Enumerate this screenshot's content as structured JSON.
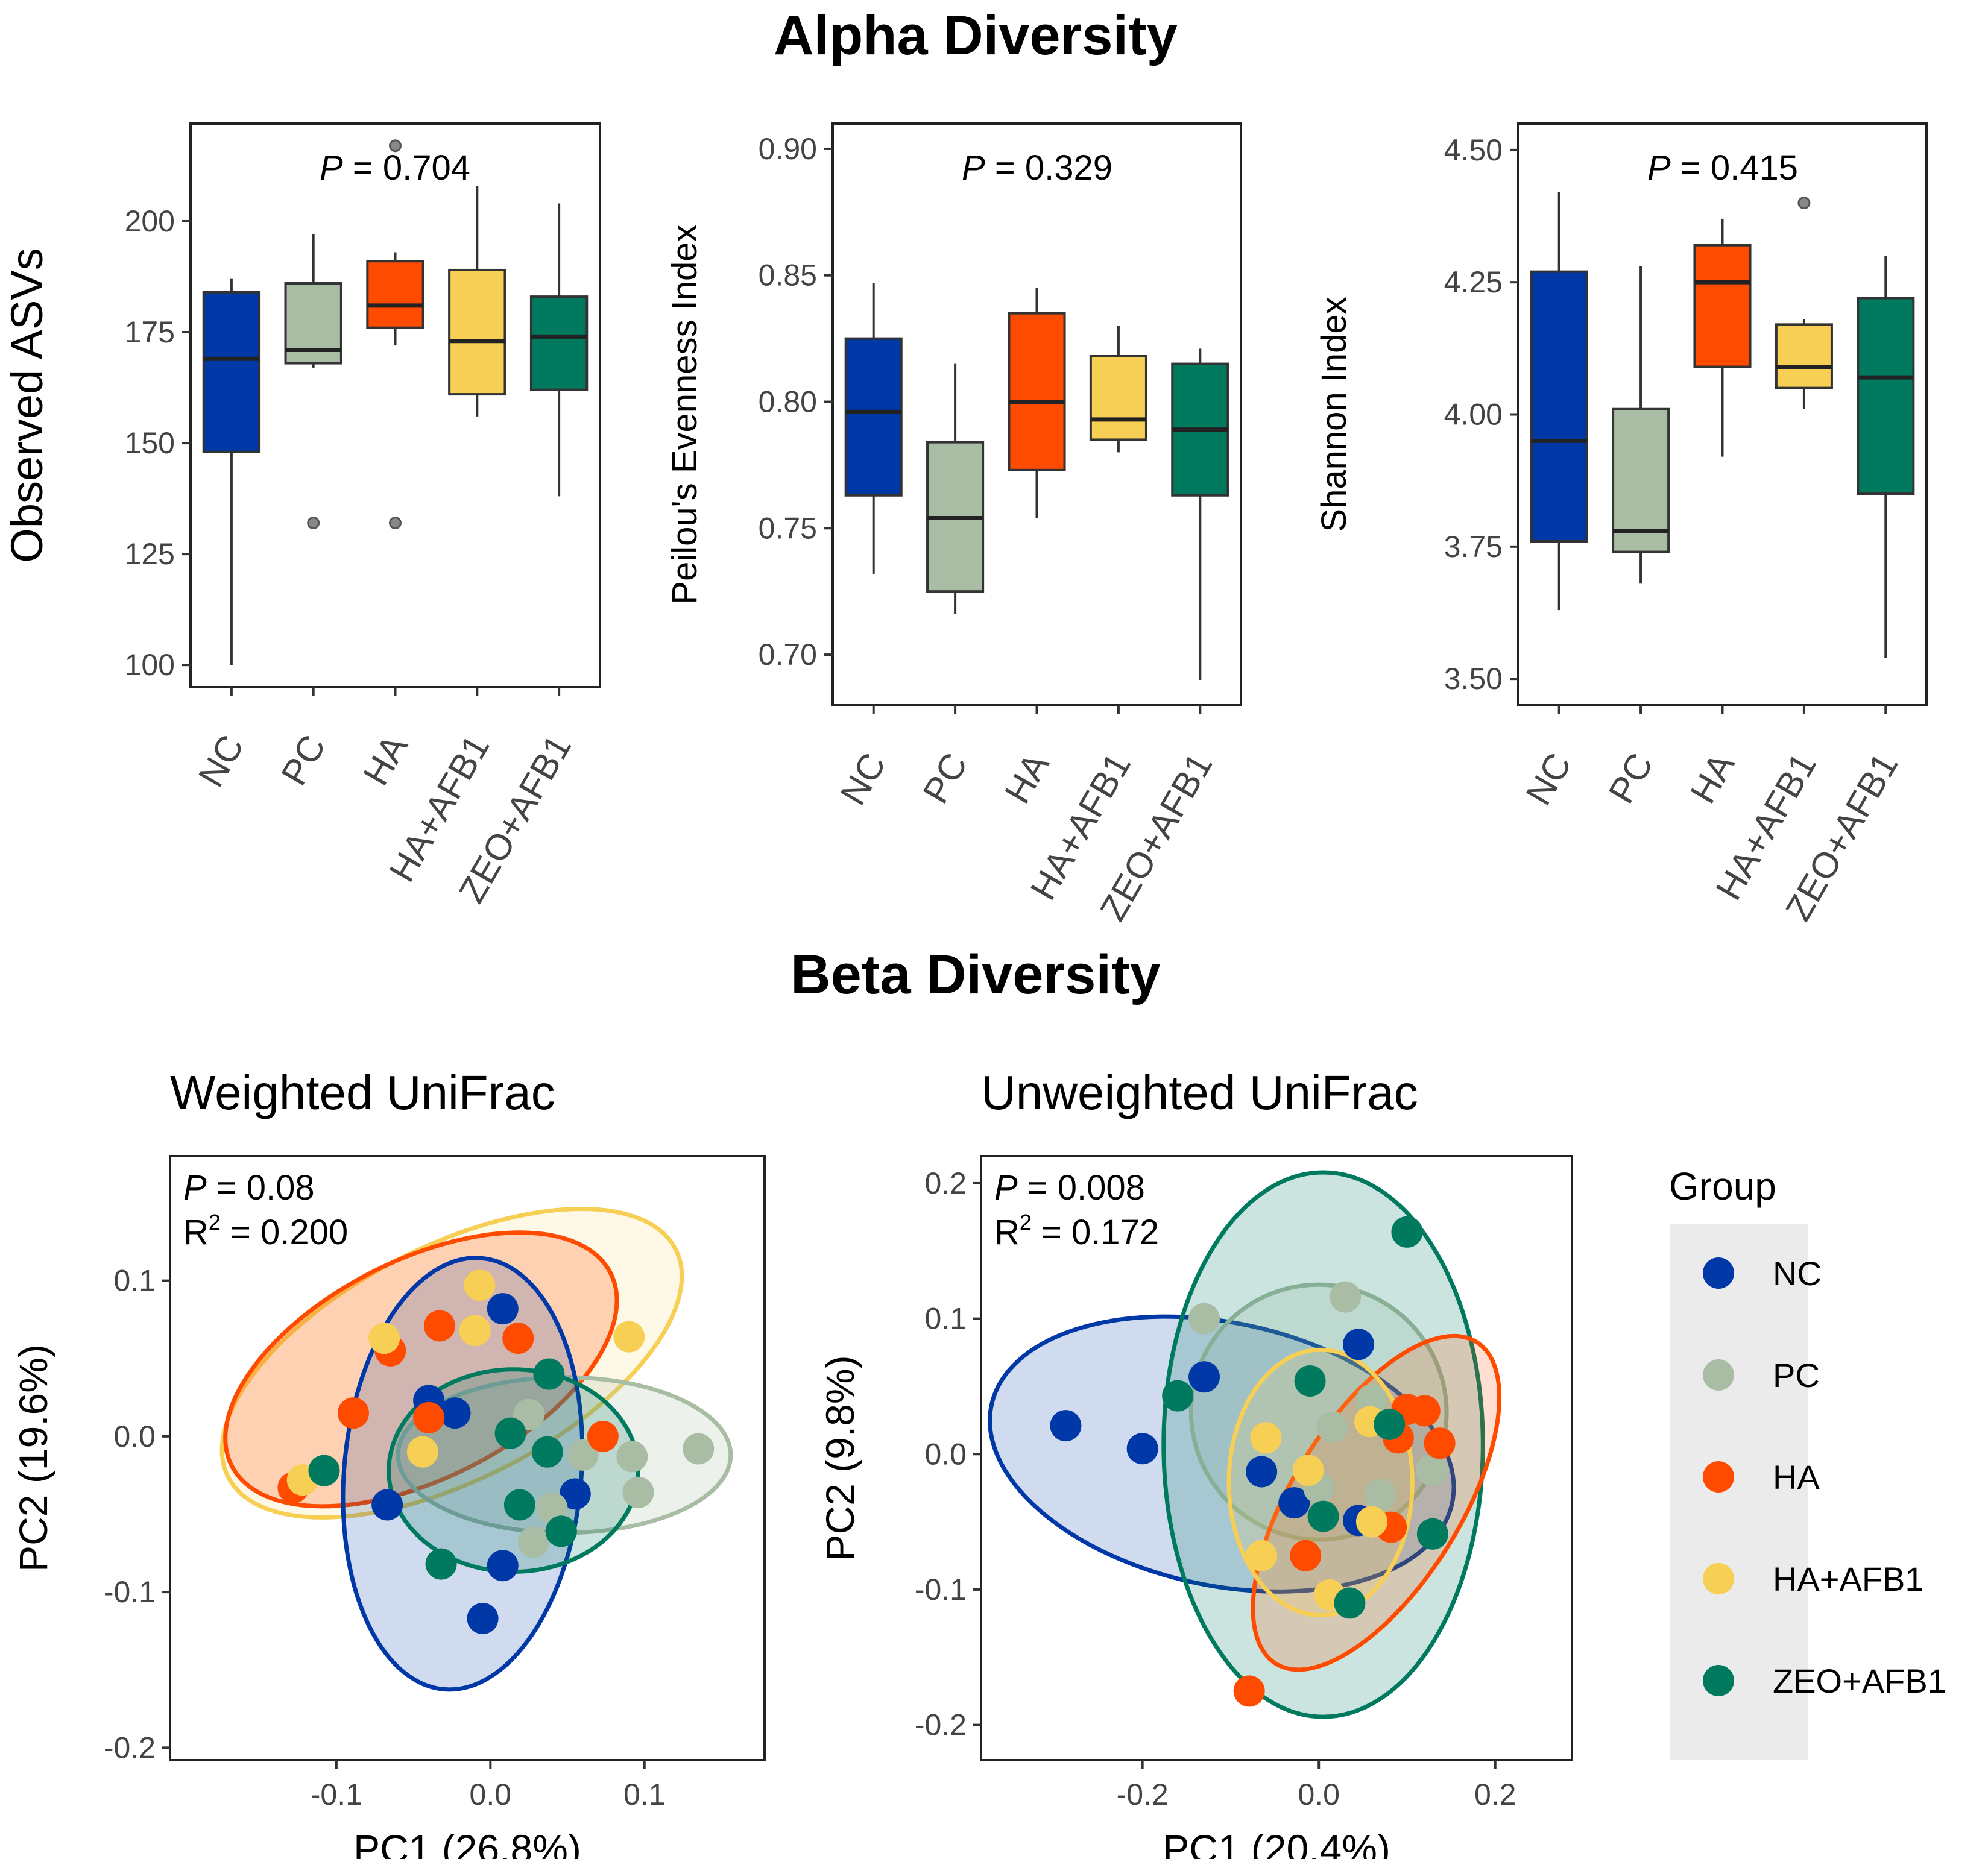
{
  "alpha_title": "Alpha Diversity",
  "beta_title": "Beta Diversity",
  "colors": {
    "NC": "#0038a8",
    "PC": "#a8bda4",
    "HA": "#ff4b00",
    "HA+AFB1": "#f7cf55",
    "ZEO+AFB1": "#007a5e"
  },
  "legend": {
    "title": "Group",
    "items": [
      "NC",
      "PC",
      "HA",
      "HA+AFB1",
      "ZEO+AFB1"
    ]
  },
  "chart_data": [
    {
      "type": "box",
      "title": "",
      "ylabel": "Observed ASVs",
      "annotation": {
        "p_label": "P",
        "p_value": "= 0.704"
      },
      "ylim": [
        95,
        222
      ],
      "yticks": [
        100,
        125,
        150,
        175,
        200
      ],
      "categories": [
        "NC",
        "PC",
        "HA",
        "HA+AFB1",
        "ZEO+AFB1"
      ],
      "boxes": [
        {
          "group": "NC",
          "whisker_low": 100,
          "q1": 148,
          "median": 169,
          "q3": 184,
          "whisker_high": 187,
          "outliers": []
        },
        {
          "group": "PC",
          "whisker_low": 167,
          "q1": 168,
          "median": 171,
          "q3": 186,
          "whisker_high": 197,
          "outliers": [
            132
          ]
        },
        {
          "group": "HA",
          "whisker_low": 172,
          "q1": 176,
          "median": 181,
          "q3": 191,
          "whisker_high": 193,
          "outliers": [
            217,
            132
          ]
        },
        {
          "group": "HA+AFB1",
          "whisker_low": 156,
          "q1": 161,
          "median": 173,
          "q3": 189,
          "whisker_high": 208,
          "outliers": []
        },
        {
          "group": "ZEO+AFB1",
          "whisker_low": 138,
          "q1": 162,
          "median": 174,
          "q3": 183,
          "whisker_high": 204,
          "outliers": []
        }
      ]
    },
    {
      "type": "box",
      "title": "",
      "ylabel": "Peilou's Evenness Index",
      "annotation": {
        "p_label": "P",
        "p_value": "= 0.329"
      },
      "ylim": [
        0.68,
        0.91
      ],
      "yticks": [
        0.7,
        0.75,
        0.8,
        0.85,
        0.9
      ],
      "ytick_labels": [
        "0.70",
        "0.75",
        "0.80",
        "0.85",
        "0.90"
      ],
      "categories": [
        "NC",
        "PC",
        "HA",
        "HA+AFB1",
        "ZEO+AFB1"
      ],
      "boxes": [
        {
          "group": "NC",
          "whisker_low": 0.732,
          "q1": 0.763,
          "median": 0.796,
          "q3": 0.825,
          "whisker_high": 0.847,
          "outliers": []
        },
        {
          "group": "PC",
          "whisker_low": 0.716,
          "q1": 0.725,
          "median": 0.754,
          "q3": 0.784,
          "whisker_high": 0.815,
          "outliers": []
        },
        {
          "group": "HA",
          "whisker_low": 0.754,
          "q1": 0.773,
          "median": 0.8,
          "q3": 0.835,
          "whisker_high": 0.845,
          "outliers": []
        },
        {
          "group": "HA+AFB1",
          "whisker_low": 0.78,
          "q1": 0.785,
          "median": 0.793,
          "q3": 0.818,
          "whisker_high": 0.83,
          "outliers": []
        },
        {
          "group": "ZEO+AFB1",
          "whisker_low": 0.69,
          "q1": 0.763,
          "median": 0.789,
          "q3": 0.815,
          "whisker_high": 0.821,
          "outliers": []
        }
      ]
    },
    {
      "type": "box",
      "title": "",
      "ylabel": "Shannon Index",
      "annotation": {
        "p_label": "P",
        "p_value": "= 0.415"
      },
      "ylim": [
        3.45,
        4.55
      ],
      "yticks": [
        3.5,
        3.75,
        4.0,
        4.25,
        4.5
      ],
      "ytick_labels": [
        "3.50",
        "3.75",
        "4.00",
        "4.25",
        "4.50"
      ],
      "categories": [
        "NC",
        "PC",
        "HA",
        "HA+AFB1",
        "ZEO+AFB1"
      ],
      "boxes": [
        {
          "group": "NC",
          "whisker_low": 3.63,
          "q1": 3.76,
          "median": 3.95,
          "q3": 4.27,
          "whisker_high": 4.42,
          "outliers": []
        },
        {
          "group": "PC",
          "whisker_low": 3.68,
          "q1": 3.74,
          "median": 3.78,
          "q3": 4.01,
          "whisker_high": 4.28,
          "outliers": []
        },
        {
          "group": "HA",
          "whisker_low": 3.92,
          "q1": 4.09,
          "median": 4.25,
          "q3": 4.32,
          "whisker_high": 4.37,
          "outliers": []
        },
        {
          "group": "HA+AFB1",
          "whisker_low": 4.01,
          "q1": 4.05,
          "median": 4.09,
          "q3": 4.17,
          "whisker_high": 4.18,
          "outliers": [
            4.4
          ]
        },
        {
          "group": "ZEO+AFB1",
          "whisker_low": 3.54,
          "q1": 3.85,
          "median": 4.07,
          "q3": 4.22,
          "whisker_high": 4.3,
          "outliers": []
        }
      ]
    },
    {
      "type": "scatter",
      "title": "Weighted UniFrac",
      "xlabel": "PC1 (26.8%)",
      "ylabel": "PC2 (19.6%)",
      "annotation": {
        "p_label": "P",
        "p_value": "= 0.08",
        "r2_label": "R",
        "r2_sup": "2",
        "r2_value": "= 0.200"
      },
      "xlim": [
        -0.208,
        0.178
      ],
      "ylim": [
        -0.208,
        0.18
      ],
      "xticks": [
        -0.1,
        0.0,
        0.1
      ],
      "xtick_labels": [
        "-0.1",
        "0.0",
        "0.1"
      ],
      "yticks": [
        -0.2,
        -0.1,
        0.0,
        0.1
      ],
      "ytick_labels": [
        "-0.2",
        "-0.1",
        "0.0",
        "0.1"
      ],
      "ellipses": [
        {
          "group": "HA+AFB1",
          "cx": -0.025,
          "cy": 0.047,
          "rx": 0.163,
          "ry": 0.075,
          "angle": -27,
          "opacity": 0.15
        },
        {
          "group": "HA",
          "cx": -0.045,
          "cy": 0.043,
          "rx": 0.138,
          "ry": 0.07,
          "angle": -27,
          "opacity": 0.22
        },
        {
          "group": "PC",
          "cx": 0.048,
          "cy": -0.012,
          "rx": 0.108,
          "ry": 0.05,
          "angle": 0,
          "opacity": 0.22
        },
        {
          "group": "NC",
          "cx": -0.018,
          "cy": -0.024,
          "rx": 0.077,
          "ry": 0.139,
          "angle": 5,
          "opacity": 0.18
        },
        {
          "group": "ZEO+AFB1",
          "cx": 0.015,
          "cy": -0.022,
          "rx": 0.081,
          "ry": 0.065,
          "angle": 0,
          "opacity": 0.2
        }
      ],
      "series": [
        {
          "name": "NC",
          "points": [
            [
              0.008,
              0.082
            ],
            [
              -0.04,
              0.023
            ],
            [
              -0.023,
              0.015
            ],
            [
              -0.067,
              -0.044
            ],
            [
              0.055,
              -0.037
            ],
            [
              0.008,
              -0.083
            ],
            [
              -0.005,
              -0.117
            ]
          ]
        },
        {
          "name": "PC",
          "points": [
            [
              0.06,
              -0.012
            ],
            [
              0.092,
              -0.013
            ],
            [
              0.135,
              -0.008
            ],
            [
              0.096,
              -0.036
            ],
            [
              0.025,
              0.014
            ],
            [
              0.028,
              -0.068
            ],
            [
              0.04,
              -0.046
            ]
          ]
        },
        {
          "name": "HA",
          "points": [
            [
              -0.065,
              0.055
            ],
            [
              -0.033,
              0.071
            ],
            [
              -0.089,
              0.015
            ],
            [
              0.018,
              0.063
            ],
            [
              0.073,
              0.0
            ],
            [
              -0.04,
              0.012
            ],
            [
              -0.128,
              -0.033
            ]
          ]
        },
        {
          "name": "HA+AFB1",
          "points": [
            [
              -0.007,
              0.097
            ],
            [
              -0.069,
              0.063
            ],
            [
              -0.01,
              0.068
            ],
            [
              0.09,
              0.064
            ],
            [
              -0.044,
              -0.01
            ],
            [
              -0.122,
              -0.028
            ]
          ]
        },
        {
          "name": "ZEO+AFB1",
          "points": [
            [
              0.038,
              0.04
            ],
            [
              0.013,
              0.002
            ],
            [
              0.037,
              -0.01
            ],
            [
              0.019,
              -0.044
            ],
            [
              0.046,
              -0.061
            ],
            [
              -0.032,
              -0.082
            ],
            [
              -0.108,
              -0.022
            ]
          ]
        }
      ]
    },
    {
      "type": "scatter",
      "title": "Unweighted UniFrac",
      "xlabel": "PC1 (20.4%)",
      "ylabel": "PC2 (9.8%)",
      "annotation": {
        "p_label": "P",
        "p_value": "= 0.008",
        "r2_label": "R",
        "r2_sup": "2",
        "r2_value": "= 0.172"
      },
      "xlim": [
        -0.383,
        0.287
      ],
      "ylim": [
        -0.226,
        0.22
      ],
      "xticks": [
        -0.2,
        0.0,
        0.2
      ],
      "xtick_labels": [
        "-0.2",
        "0.0",
        "0.2"
      ],
      "yticks": [
        -0.2,
        -0.1,
        0.0,
        0.1,
        0.2
      ],
      "ytick_labels": [
        "-0.2",
        "-0.1",
        "0.0",
        "0.1",
        "0.2"
      ],
      "ellipses": [
        {
          "group": "NC",
          "cx": -0.11,
          "cy": 0.0,
          "rx": 0.267,
          "ry": 0.097,
          "angle": 12,
          "opacity": 0.18
        },
        {
          "group": "PC",
          "cx": 0.0,
          "cy": 0.031,
          "rx": 0.145,
          "ry": 0.094,
          "angle": 32,
          "opacity": 0.2
        },
        {
          "group": "ZEO+AFB1",
          "cx": 0.005,
          "cy": 0.007,
          "rx": 0.181,
          "ry": 0.201,
          "angle": 0,
          "opacity": 0.2
        },
        {
          "group": "HA",
          "cx": 0.065,
          "cy": -0.036,
          "rx": 0.215,
          "ry": 0.062,
          "angle": -58,
          "opacity": 0.18
        },
        {
          "group": "HA+AFB1",
          "cx": 0.002,
          "cy": -0.021,
          "rx": 0.104,
          "ry": 0.098,
          "angle": 0,
          "opacity": 0.18
        }
      ],
      "series": [
        {
          "name": "NC",
          "points": [
            [
              -0.287,
              0.021
            ],
            [
              -0.2,
              0.004
            ],
            [
              -0.13,
              0.057
            ],
            [
              -0.065,
              -0.013
            ],
            [
              -0.028,
              -0.036
            ],
            [
              0.045,
              0.081
            ],
            [
              0.045,
              -0.049
            ]
          ]
        },
        {
          "name": "PC",
          "points": [
            [
              -0.13,
              0.1
            ],
            [
              0.03,
              0.116
            ],
            [
              0.06,
              0.04
            ],
            [
              0.128,
              -0.012
            ],
            [
              0.015,
              0.02
            ],
            [
              0.07,
              -0.03
            ],
            [
              0.0,
              -0.025
            ]
          ]
        },
        {
          "name": "HA",
          "points": [
            [
              0.12,
              0.032
            ],
            [
              0.137,
              0.008
            ],
            [
              0.09,
              0.012
            ],
            [
              0.082,
              -0.054
            ],
            [
              0.1,
              0.033
            ],
            [
              -0.015,
              -0.075
            ],
            [
              -0.079,
              -0.175
            ]
          ]
        },
        {
          "name": "HA+AFB1",
          "points": [
            [
              0.058,
              0.024
            ],
            [
              -0.06,
              0.012
            ],
            [
              -0.012,
              -0.012
            ],
            [
              0.06,
              -0.05
            ],
            [
              -0.065,
              -0.075
            ],
            [
              0.012,
              -0.104
            ]
          ]
        },
        {
          "name": "ZEO+AFB1",
          "points": [
            [
              0.1,
              0.164
            ],
            [
              -0.16,
              0.043
            ],
            [
              -0.01,
              0.054
            ],
            [
              0.08,
              0.022
            ],
            [
              0.005,
              -0.046
            ],
            [
              0.129,
              -0.059
            ],
            [
              0.035,
              -0.11
            ]
          ]
        }
      ]
    }
  ]
}
